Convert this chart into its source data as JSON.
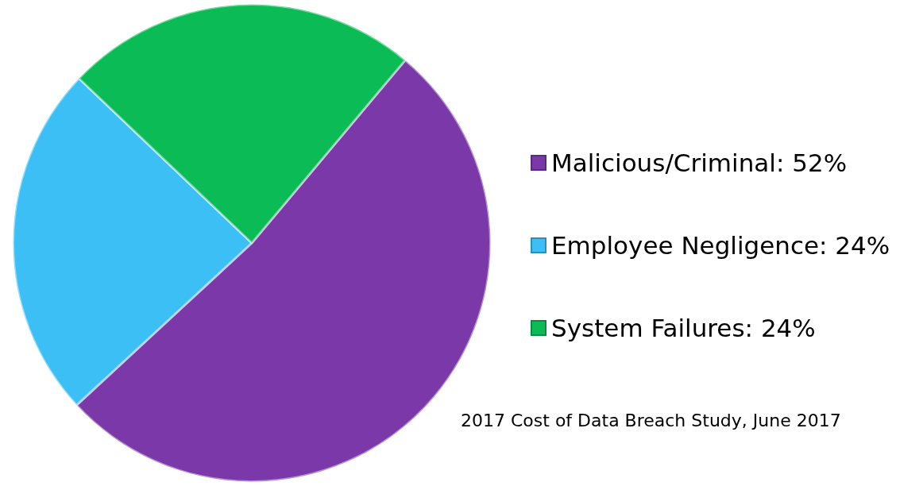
{
  "chart_data": {
    "type": "pie",
    "categories": [
      "Malicious/Criminal: 52%",
      "Employee Negligence: 24%",
      "System Failures: 24%"
    ],
    "values": [
      52,
      24,
      24
    ],
    "colors": [
      "#7a38a8",
      "#3bbff5",
      "#0bbb55"
    ],
    "legend": "right",
    "annotations": [
      "2017 Cost of Data Breach Study, June 2017"
    ]
  }
}
